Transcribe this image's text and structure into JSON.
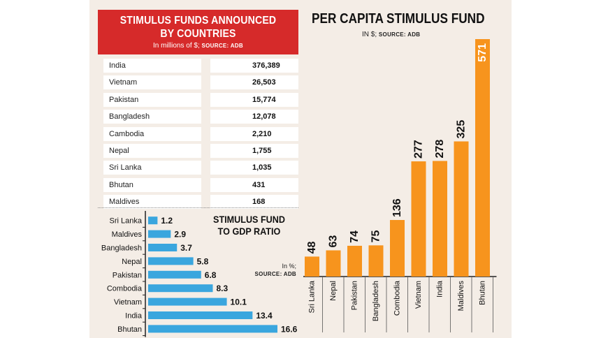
{
  "stimulus_table": {
    "title": "STIMULUS FUNDS ANNOUNCED\nBY COUNTRIES",
    "subtitle": "In millions of $;",
    "source": "SOURCE: ADB",
    "rows": [
      {
        "country": "India",
        "value": "376,389"
      },
      {
        "country": "Vietnam",
        "value": "26,503"
      },
      {
        "country": "Pakistan",
        "value": "15,774"
      },
      {
        "country": "Bangladesh",
        "value": "12,078"
      },
      {
        "country": "Cambodia",
        "value": "2,210"
      },
      {
        "country": "Nepal",
        "value": "1,755"
      },
      {
        "country": "Sri Lanka",
        "value": "1,035"
      },
      {
        "country": "Bhutan",
        "value": "431"
      },
      {
        "country": "Maldives",
        "value": "168"
      }
    ]
  },
  "chart_data": [
    {
      "type": "bar",
      "orientation": "horizontal",
      "title": "STIMULUS FUND TO GDP RATIO",
      "unit_label": "In %;",
      "source": "SOURCE: ADB",
      "categories": [
        "Sri Lanka",
        "Maldives",
        "Bangladesh",
        "Nepal",
        "Pakistan",
        "Combodia",
        "Vietnam",
        "India",
        "Bhutan"
      ],
      "values": [
        1.2,
        2.9,
        3.7,
        5.8,
        6.8,
        8.3,
        10.1,
        13.4,
        16.6
      ],
      "value_labels": [
        "1.2",
        "2.9",
        "3.7",
        "5.8",
        "6.8",
        "8.3",
        "10.1",
        "13.4",
        "16.6"
      ],
      "bar_color": "#3aa6de",
      "xlim": [
        0,
        16.6
      ]
    },
    {
      "type": "bar",
      "orientation": "vertical",
      "title": "PER CAPITA STIMULUS FUND",
      "unit_label": "IN $;",
      "source": "SOURCE: ADB",
      "categories": [
        "Sri Lanka",
        "Nepal",
        "Pakistan",
        "Bangladesh",
        "Combodia",
        "Vietnam",
        "India",
        "Maldives",
        "Bhutan"
      ],
      "values": [
        48,
        63,
        74,
        75,
        136,
        277,
        278,
        325,
        571
      ],
      "value_labels": [
        "48",
        "63",
        "74",
        "75",
        "136",
        "277",
        "278",
        "325",
        "571"
      ],
      "bar_color": "#f7941d",
      "ylim": [
        0,
        571
      ]
    }
  ]
}
